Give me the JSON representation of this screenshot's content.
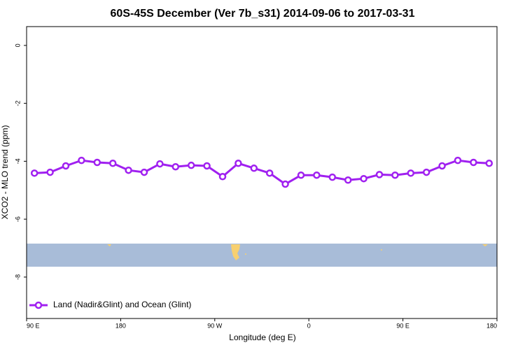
{
  "chart_data": {
    "type": "line",
    "title": "60S-45S December (Ver 7b_s31)   2014-09-06 to 2017-03-31",
    "xlabel": "Longitude (deg E)",
    "ylabel": "XCO2 - MLO trend (ppm)",
    "x": [
      97.5,
      112.5,
      127.5,
      142.5,
      157.5,
      172.5,
      187.5,
      202.5,
      217.5,
      232.5,
      247.5,
      262.5,
      277.5,
      292.5,
      307.5,
      322.5,
      337.5,
      352.5,
      367.5,
      382.5,
      397.5,
      412.5,
      427.5,
      442.5,
      457.5,
      472.5,
      487.5,
      502.5,
      517.5,
      532.5
    ],
    "series": [
      {
        "name": "Land (Nadir&Glint) and Ocean (Glint)",
        "color": "#a020f0",
        "values": [
          -4.41,
          -4.38,
          -4.16,
          -3.97,
          -4.04,
          -4.07,
          -4.31,
          -4.38,
          -4.09,
          -4.19,
          -4.14,
          -4.16,
          -4.53,
          -4.07,
          -4.24,
          -4.41,
          -4.79,
          -4.48,
          -4.48,
          -4.55,
          -4.65,
          -4.6,
          -4.46,
          -4.48,
          -4.41,
          -4.38,
          -4.16,
          -3.97,
          -4.04,
          -4.07
        ]
      }
    ],
    "xlim": [
      90,
      540
    ],
    "xticks": [
      {
        "value": 90,
        "label": "90 E"
      },
      180,
      {
        "value": 270,
        "label": "90 W"
      },
      {
        "value": 360,
        "label": "0"
      },
      {
        "value": 450,
        "label": "90 E"
      },
      {
        "value": 540,
        "label": "180"
      }
    ],
    "ylim": [
      -9.43,
      0.65
    ],
    "yticks": [
      0,
      -2,
      -4,
      -6,
      -8
    ],
    "legend": "bottom-left"
  }
}
